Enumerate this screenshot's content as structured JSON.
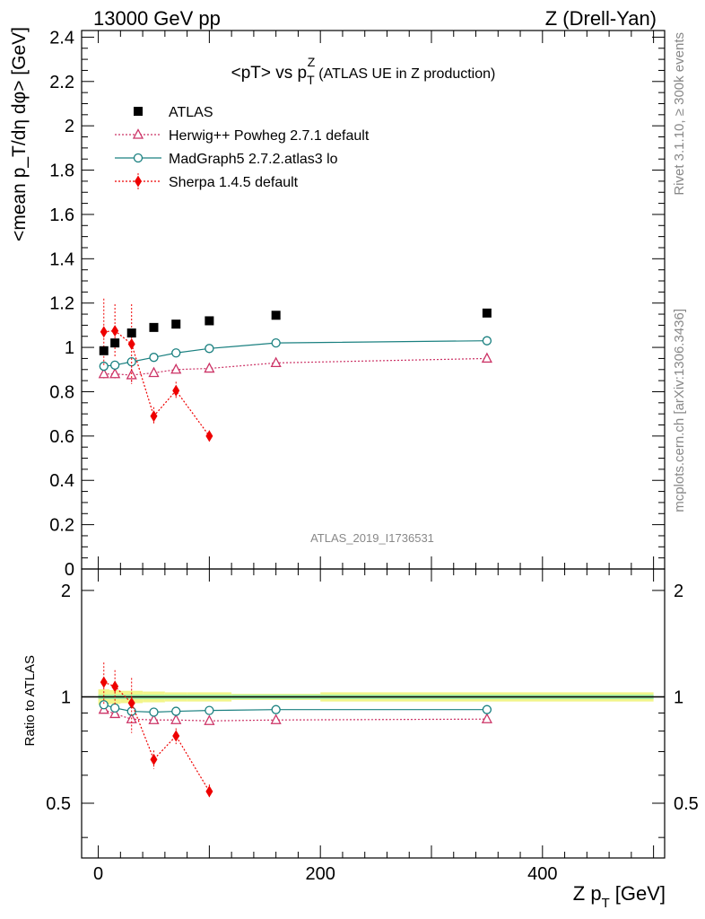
{
  "header": {
    "left": "13000 GeV pp",
    "right": "Z (Drell-Yan)"
  },
  "side_notes": {
    "upper": "Rivet 3.1.10, ≥ 300k events",
    "lower": "mcplots.cern.ch [arXiv:1306.3436]"
  },
  "watermark": "ATLAS_2019_I1736531",
  "chart_data": [
    {
      "panel": "main",
      "type": "scatter",
      "title_main": "<pT> vs p",
      "title_sup": "Z",
      "title_sub": "T",
      "title_note": "(ATLAS UE in Z production)",
      "ylabel": "<mean p_T/dη dφ> [GeV]",
      "xlim": [
        -15,
        510
      ],
      "ylim": [
        0,
        2.43
      ],
      "yticks": [
        0,
        0.2,
        0.4,
        0.6,
        0.8,
        1,
        1.2,
        1.4,
        1.6,
        1.8,
        2,
        2.2,
        2.4
      ],
      "ytick_labels": [
        "0",
        "0.2",
        "0.4",
        "0.6",
        "0.8",
        "1",
        "1.2",
        "1.4",
        "1.6",
        "1.8",
        "2",
        "2.2",
        "2.4"
      ],
      "legend": "top-left",
      "series": [
        {
          "name": "ATLAS",
          "marker": "square",
          "color": "#000000",
          "x": [
            5,
            15,
            30,
            50,
            70,
            100,
            160,
            350
          ],
          "y": [
            0.985,
            1.02,
            1.065,
            1.09,
            1.105,
            1.12,
            1.145,
            1.155
          ],
          "err": [
            0.01,
            0.01,
            0.01,
            0.01,
            0.01,
            0.01,
            0.01,
            0.01
          ]
        },
        {
          "name": "Herwig++ Powheg 2.7.1 default",
          "marker": "triangle-open",
          "line": "dotted",
          "color": "#cc3366",
          "x": [
            5,
            15,
            30,
            50,
            70,
            100,
            160,
            350
          ],
          "y": [
            0.88,
            0.88,
            0.875,
            0.885,
            0.9,
            0.905,
            0.93,
            0.95
          ],
          "err": [
            0.02,
            0.02,
            0.04,
            0.01,
            0.01,
            0.01,
            0.01,
            0.01
          ]
        },
        {
          "name": "MadGraph5 2.7.2.atlas3 lo",
          "marker": "circle-open",
          "line": "solid",
          "color": "#1a8080",
          "x": [
            5,
            15,
            30,
            50,
            70,
            100,
            160,
            350
          ],
          "y": [
            0.915,
            0.92,
            0.935,
            0.955,
            0.975,
            0.995,
            1.02,
            1.03
          ],
          "err": [
            0.01,
            0.01,
            0.01,
            0.01,
            0.01,
            0.01,
            0.01,
            0.02
          ]
        },
        {
          "name": "Sherpa 1.4.5 default",
          "marker": "diamond",
          "line": "dotted",
          "color": "#ee0000",
          "x": [
            5,
            15,
            30,
            50,
            70,
            100
          ],
          "y": [
            1.07,
            1.075,
            1.015,
            0.69,
            0.805,
            0.6
          ],
          "err": [
            0.15,
            0.12,
            0.18,
            0.04,
            0.04,
            0.025
          ]
        }
      ]
    },
    {
      "panel": "ratio",
      "type": "scatter",
      "ylabel": "Ratio to ATLAS",
      "xlabel_main": "Z p",
      "xlabel_sub": "T",
      "xlabel_unit": "[GeV]",
      "xlim": [
        -15,
        510
      ],
      "ylim": [
        0.35,
        2.3
      ],
      "yticks": [
        0.5,
        1,
        2
      ],
      "ytick_labels": [
        "0.5",
        "1",
        "2"
      ],
      "xticks": [
        0,
        200,
        400
      ],
      "xtick_labels": [
        "0",
        "200",
        "400"
      ],
      "reference": 1,
      "band": [
        {
          "x0": 0,
          "x1": 10,
          "lo": 0.95,
          "hi": 1.05
        },
        {
          "x0": 10,
          "x1": 20,
          "lo": 0.955,
          "hi": 1.045
        },
        {
          "x0": 20,
          "x1": 40,
          "lo": 0.96,
          "hi": 1.04
        },
        {
          "x0": 40,
          "x1": 60,
          "lo": 0.965,
          "hi": 1.035
        },
        {
          "x0": 60,
          "x1": 80,
          "lo": 0.97,
          "hi": 1.03
        },
        {
          "x0": 80,
          "x1": 120,
          "lo": 0.97,
          "hi": 1.03
        },
        {
          "x0": 120,
          "x1": 200,
          "lo": 0.98,
          "hi": 1.02
        },
        {
          "x0": 200,
          "x1": 500,
          "lo": 0.97,
          "hi": 1.03
        }
      ],
      "band_inner": [
        {
          "x0": 0,
          "x1": 120,
          "lo": 0.985,
          "hi": 1.015
        },
        {
          "x0": 120,
          "x1": 500,
          "lo": 0.985,
          "hi": 1.015
        }
      ],
      "series": [
        {
          "name": "Herwig++ Powheg 2.7.1 default",
          "marker": "triangle-open",
          "line": "dotted",
          "color": "#cc3366",
          "x": [
            5,
            15,
            30,
            50,
            70,
            100,
            160,
            350
          ],
          "y": [
            0.92,
            0.895,
            0.865,
            0.86,
            0.86,
            0.855,
            0.86,
            0.865
          ],
          "err": [
            0.02,
            0.02,
            0.03,
            0.01,
            0.01,
            0.01,
            0.01,
            0.01
          ]
        },
        {
          "name": "MadGraph5 2.7.2.atlas3 lo",
          "marker": "circle-open",
          "line": "solid",
          "color": "#1a8080",
          "x": [
            5,
            15,
            30,
            50,
            70,
            100,
            160,
            350
          ],
          "y": [
            0.95,
            0.93,
            0.91,
            0.905,
            0.91,
            0.915,
            0.92,
            0.92
          ],
          "err": [
            0.01,
            0.01,
            0.01,
            0.01,
            0.01,
            0.01,
            0.01,
            0.01
          ]
        },
        {
          "name": "Sherpa 1.4.5 default",
          "marker": "diamond",
          "line": "dotted",
          "color": "#ee0000",
          "x": [
            5,
            15,
            30,
            50,
            70,
            100
          ],
          "y": [
            1.1,
            1.07,
            0.96,
            0.665,
            0.775,
            0.54
          ],
          "err": [
            0.15,
            0.12,
            0.17,
            0.04,
            0.04,
            0.025
          ]
        }
      ]
    }
  ]
}
